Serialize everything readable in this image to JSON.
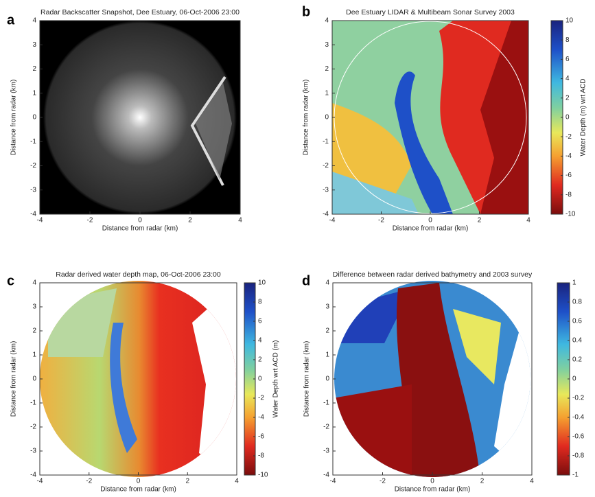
{
  "chart_data": [
    {
      "type": "image",
      "panel_label": "a",
      "title": "Radar Backscatter Snapshot, Dee Estuary, 06-Oct-2006 23:00",
      "xlabel": "Distance from radar (km)",
      "ylabel": "Distance from radar (km)",
      "xlim": [
        -4,
        4
      ],
      "ylim": [
        -4,
        4
      ],
      "xticks": [
        -4,
        -2,
        0,
        2,
        4
      ],
      "yticks": [
        -4,
        -3,
        -2,
        -1,
        0,
        1,
        2,
        3,
        4
      ]
    },
    {
      "type": "image",
      "panel_label": "b",
      "title": "Dee Estuary LIDAR & Multibeam Sonar Survey 2003",
      "xlabel": "Distance from radar (km)",
      "ylabel": "Distance from radar (km)",
      "xlim": [
        -4,
        4
      ],
      "ylim": [
        -4,
        4
      ],
      "xticks": [
        -4,
        -2,
        0,
        2,
        4
      ],
      "yticks": [
        -4,
        -3,
        -2,
        -1,
        0,
        1,
        2,
        3,
        4
      ],
      "colorbar": {
        "label": "Water Depth (m) wrt ACD",
        "lim": [
          -10,
          10
        ],
        "ticks": [
          -10,
          -8,
          -6,
          -4,
          -2,
          0,
          2,
          4,
          6,
          8,
          10
        ]
      }
    },
    {
      "type": "image",
      "panel_label": "c",
      "title": "Radar derived water depth map, 06-Oct-2006 23:00",
      "xlabel": "Distance from radar (km)",
      "ylabel": "Distance from radar (km)",
      "xlim": [
        -4,
        4
      ],
      "ylim": [
        -4,
        4
      ],
      "xticks": [
        -4,
        -2,
        0,
        2,
        4
      ],
      "yticks": [
        -4,
        -3,
        -2,
        -1,
        0,
        1,
        2,
        3,
        4
      ],
      "colorbar": {
        "label": "Water Depth wrt ACD (m)",
        "lim": [
          -10,
          10
        ],
        "ticks": [
          -10,
          -8,
          -6,
          -4,
          -2,
          0,
          2,
          4,
          6,
          8,
          10
        ]
      }
    },
    {
      "type": "image",
      "panel_label": "d",
      "title": "Difference between radar derived bathymetry and 2003 survey",
      "xlabel": "Distance from radar (km)",
      "ylabel": "Distance from radar (km)",
      "xlim": [
        -4,
        4
      ],
      "ylim": [
        -4,
        4
      ],
      "xticks": [
        -4,
        -2,
        0,
        2,
        4
      ],
      "yticks": [
        -4,
        -3,
        -2,
        -1,
        0,
        1,
        2,
        3,
        4
      ],
      "colorbar": {
        "lim": [
          -1,
          1
        ],
        "ticks": [
          -1,
          -0.8,
          -0.6,
          -0.4,
          -0.2,
          0,
          0.2,
          0.4,
          0.6,
          0.8,
          1
        ]
      }
    }
  ]
}
